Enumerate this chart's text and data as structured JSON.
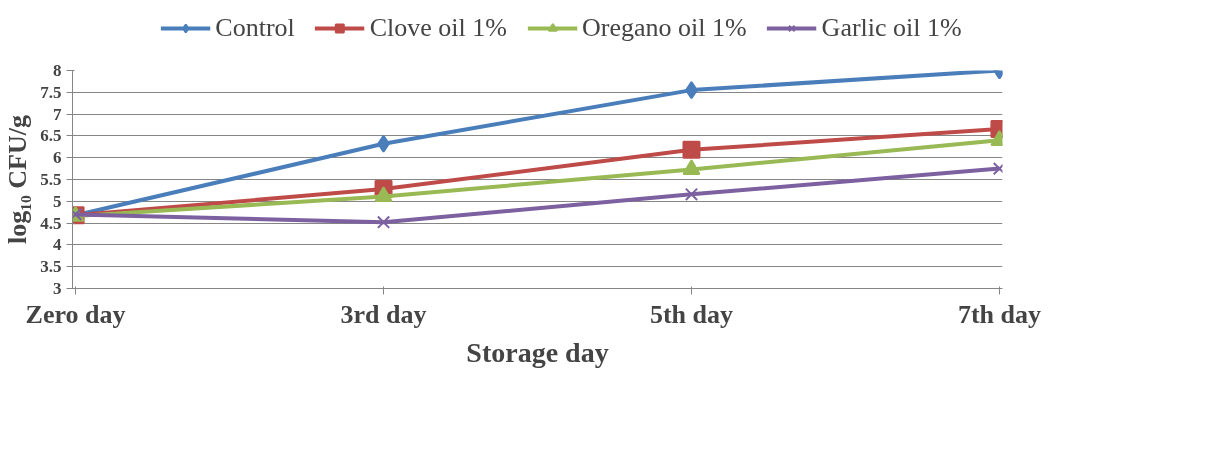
{
  "chart_data": {
    "type": "line",
    "xlabel": "Storage day",
    "ylabel": "log₁₀ CFU/g",
    "categories": [
      "Zero day",
      "3rd day",
      "5th day",
      "7th day"
    ],
    "series": [
      {
        "name": "Control",
        "color": "#4a7ebb",
        "marker": "diamond",
        "values": [
          4.68,
          6.32,
          7.55,
          8.0
        ]
      },
      {
        "name": "Clove oil 1%",
        "color": "#be4b48",
        "marker": "square",
        "values": [
          4.68,
          5.28,
          6.18,
          6.66
        ]
      },
      {
        "name": "Oregano oil 1%",
        "color": "#98b954",
        "marker": "triangle",
        "values": [
          4.66,
          5.11,
          5.73,
          6.4
        ]
      },
      {
        "name": "Garlic oil 1%",
        "color": "#7d60a0",
        "marker": "cross",
        "values": [
          4.7,
          4.52,
          5.16,
          5.75
        ]
      }
    ],
    "ylim": [
      3,
      8
    ],
    "yticks": [
      3,
      3.5,
      4,
      4.5,
      5,
      5.5,
      6,
      6.5,
      7,
      7.5,
      8
    ],
    "grid": "y",
    "legend": "top",
    "line_style": "solid"
  }
}
